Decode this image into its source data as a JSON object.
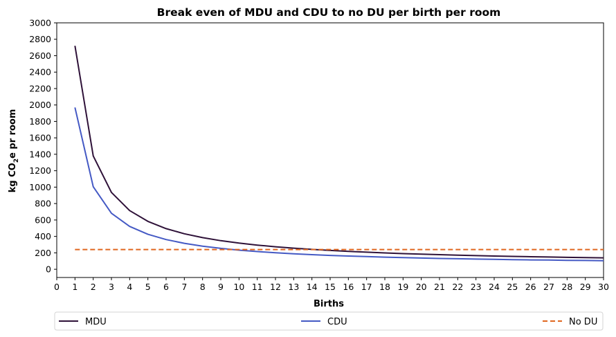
{
  "chart_data": {
    "type": "line",
    "title": "Break even of MDU and CDU to no DU per birth per room",
    "xlabel": "Births",
    "ylabel": {
      "prefix": "kg CO",
      "sub": "2",
      "suffix": "e pr room"
    },
    "xlim": [
      0,
      30
    ],
    "ylim": [
      -100,
      3000
    ],
    "xticks": [
      0,
      1,
      2,
      3,
      4,
      5,
      6,
      7,
      8,
      9,
      10,
      11,
      12,
      13,
      14,
      15,
      16,
      17,
      18,
      19,
      20,
      21,
      22,
      23,
      24,
      25,
      26,
      27,
      28,
      29,
      30
    ],
    "yticks": [
      0,
      200,
      400,
      600,
      800,
      1000,
      1200,
      1400,
      1600,
      1800,
      2000,
      2200,
      2400,
      2600,
      2800,
      3000
    ],
    "grid": false,
    "legend_position": "below",
    "x": [
      1,
      2,
      3,
      4,
      5,
      6,
      7,
      8,
      9,
      10,
      11,
      12,
      13,
      14,
      15,
      16,
      17,
      18,
      19,
      20,
      21,
      22,
      23,
      24,
      25,
      26,
      27,
      28,
      29,
      30
    ],
    "series": [
      {
        "name": "MDU",
        "color": "#2e1138",
        "style": "solid",
        "values": [
          2720,
          1380,
          935,
          715,
          583,
          495,
          432,
          385,
          348,
          319,
          294,
          274,
          257,
          242,
          229,
          218,
          208,
          199,
          191,
          184,
          178,
          172,
          166,
          161,
          157,
          153,
          149,
          145,
          142,
          139
        ]
      },
      {
        "name": "CDU",
        "color": "#4459c4",
        "style": "solid",
        "values": [
          1970,
          1005,
          682,
          522,
          426,
          362,
          316,
          282,
          255,
          233,
          216,
          201,
          189,
          178,
          169,
          161,
          154,
          148,
          142,
          137,
          132,
          128,
          124,
          121,
          117,
          114,
          112,
          109,
          107,
          104
        ]
      },
      {
        "name": "No DU",
        "color": "#e0661f",
        "style": "dashed",
        "values": [
          240,
          240,
          240,
          240,
          240,
          240,
          240,
          240,
          240,
          240,
          240,
          240,
          240,
          240,
          240,
          240,
          240,
          240,
          240,
          240,
          240,
          240,
          240,
          240,
          240,
          240,
          240,
          240,
          240,
          240
        ]
      }
    ]
  }
}
